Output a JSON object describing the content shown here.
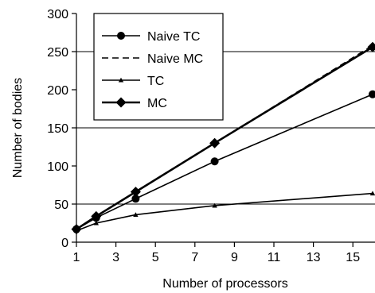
{
  "chart_data": {
    "type": "line",
    "xlabel": "Number of processors",
    "ylabel": "Number of bodies",
    "xlim": [
      1,
      16
    ],
    "ylim": [
      0,
      300
    ],
    "x_ticks": [
      "1",
      "3",
      "5",
      "7",
      "9",
      "11",
      "13",
      "15"
    ],
    "y_ticks": [
      "0",
      "50",
      "100",
      "150",
      "200",
      "250",
      "300"
    ],
    "grid": "horizontal lines at 50, 150, 250",
    "legend_position": "top-left",
    "series": [
      {
        "name": "Naive TC",
        "marker": "circle",
        "line": "solid-thin",
        "x": [
          1,
          2,
          4,
          8,
          16
        ],
        "y": [
          17,
          32,
          57,
          106,
          194
        ]
      },
      {
        "name": "Naive MC",
        "marker": "none",
        "line": "dashed",
        "x": [
          1,
          2,
          4,
          8,
          16
        ],
        "y": [
          17,
          34,
          66,
          130,
          258
        ]
      },
      {
        "name": "TC",
        "marker": "triangle",
        "line": "solid-thin",
        "x": [
          1,
          2,
          4,
          8,
          16
        ],
        "y": [
          15,
          25,
          36,
          48,
          64
        ]
      },
      {
        "name": "MC",
        "marker": "diamond",
        "line": "solid-thick",
        "x": [
          1,
          2,
          4,
          8,
          16
        ],
        "y": [
          17,
          34,
          66,
          130,
          256
        ]
      }
    ]
  }
}
